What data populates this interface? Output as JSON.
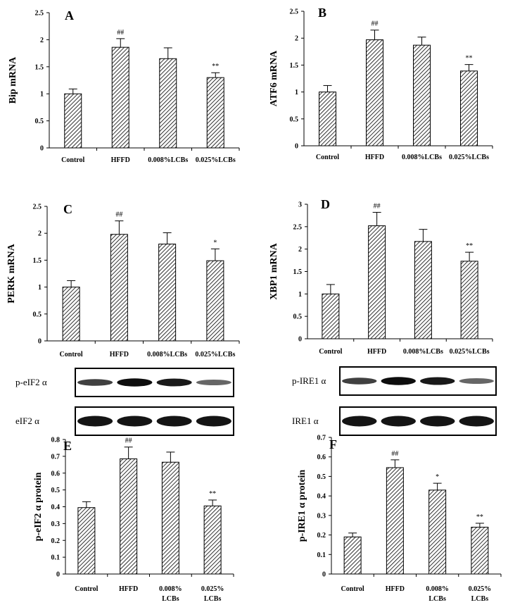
{
  "figure": {
    "hatch_color": "#000000",
    "background": "#ffffff"
  },
  "chart_data": [
    {
      "panel": "A",
      "type": "bar",
      "ylabel": "Bip mRNA",
      "categories": [
        "Control",
        "HFFD",
        "0.008%LCBs",
        "0.025%LCBs"
      ],
      "values": [
        1.0,
        1.86,
        1.65,
        1.3
      ],
      "errors": [
        0.09,
        0.16,
        0.2,
        0.09
      ],
      "annotations": [
        "",
        "##",
        "",
        "**"
      ],
      "ylim": [
        0,
        2.5
      ],
      "yticks": [
        "0",
        "0.5",
        "1",
        "1.5",
        "2",
        "2.5"
      ]
    },
    {
      "panel": "B",
      "type": "bar",
      "ylabel": "ATF6 mRNA",
      "categories": [
        "Control",
        "HFFD",
        "0.008%LCBs",
        "0.025%LCBs"
      ],
      "values": [
        1.0,
        1.97,
        1.87,
        1.39
      ],
      "errors": [
        0.12,
        0.18,
        0.15,
        0.12
      ],
      "annotations": [
        "",
        "##",
        "",
        "**"
      ],
      "ylim": [
        0,
        2.5
      ],
      "yticks": [
        "0",
        "0.5",
        "1",
        "1.5",
        "2",
        "2.5"
      ]
    },
    {
      "panel": "C",
      "type": "bar",
      "ylabel": "PERK mRNA",
      "categories": [
        "Control",
        "HFFD",
        "0.008%LCBs",
        "0.025%LCBs"
      ],
      "values": [
        1.0,
        1.98,
        1.8,
        1.49
      ],
      "errors": [
        0.12,
        0.25,
        0.21,
        0.22
      ],
      "annotations": [
        "",
        "##",
        "",
        "*"
      ],
      "ylim": [
        0,
        2.5
      ],
      "yticks": [
        "0",
        "0.5",
        "1",
        "1.5",
        "2",
        "2.5"
      ]
    },
    {
      "panel": "D",
      "type": "bar",
      "ylabel": "XBP1 mRNA",
      "categories": [
        "Control",
        "HFFD",
        "0.008%LCBs",
        "0.025%LCBs"
      ],
      "values": [
        1.0,
        2.52,
        2.17,
        1.73
      ],
      "errors": [
        0.21,
        0.3,
        0.27,
        0.2
      ],
      "annotations": [
        "",
        "##",
        "",
        "**"
      ],
      "ylim": [
        0,
        3
      ],
      "yticks": [
        "0",
        "0.5",
        "1",
        "1.5",
        "2",
        "2.5",
        "3"
      ]
    },
    {
      "panel": "E",
      "type": "bar",
      "ylabel": "p-eIF2 α protein",
      "categories": [
        [
          "Control"
        ],
        [
          "HFFD"
        ],
        [
          "0.008%",
          "LCBs"
        ],
        [
          "0.025%",
          "LCBs"
        ]
      ],
      "values": [
        0.395,
        0.685,
        0.665,
        0.405
      ],
      "errors": [
        0.035,
        0.07,
        0.06,
        0.035
      ],
      "annotations": [
        "",
        "##",
        "",
        "**"
      ],
      "ylim": [
        0,
        0.8
      ],
      "yticks": [
        "0",
        "0.1",
        "0.2",
        "0.3",
        "0.4",
        "0.5",
        "0.6",
        "0.7",
        "0.8"
      ],
      "blots": [
        "p-eIF2 α",
        "eIF2 α"
      ]
    },
    {
      "panel": "F",
      "type": "bar",
      "ylabel": "p-IRE1 α protein",
      "categories": [
        [
          "Control"
        ],
        [
          "HFFD"
        ],
        [
          "0.008%",
          "LCBs"
        ],
        [
          "0.025%",
          "LCBs"
        ]
      ],
      "values": [
        0.19,
        0.545,
        0.43,
        0.24
      ],
      "errors": [
        0.02,
        0.04,
        0.035,
        0.02
      ],
      "annotations": [
        "",
        "##",
        "*",
        "**"
      ],
      "ylim": [
        0,
        0.7
      ],
      "yticks": [
        "0",
        "0.1",
        "0.2",
        "0.3",
        "0.4",
        "0.5",
        "0.6",
        "0.7"
      ],
      "blots": [
        "p-IRE1 α",
        "IRE1 α"
      ]
    }
  ]
}
